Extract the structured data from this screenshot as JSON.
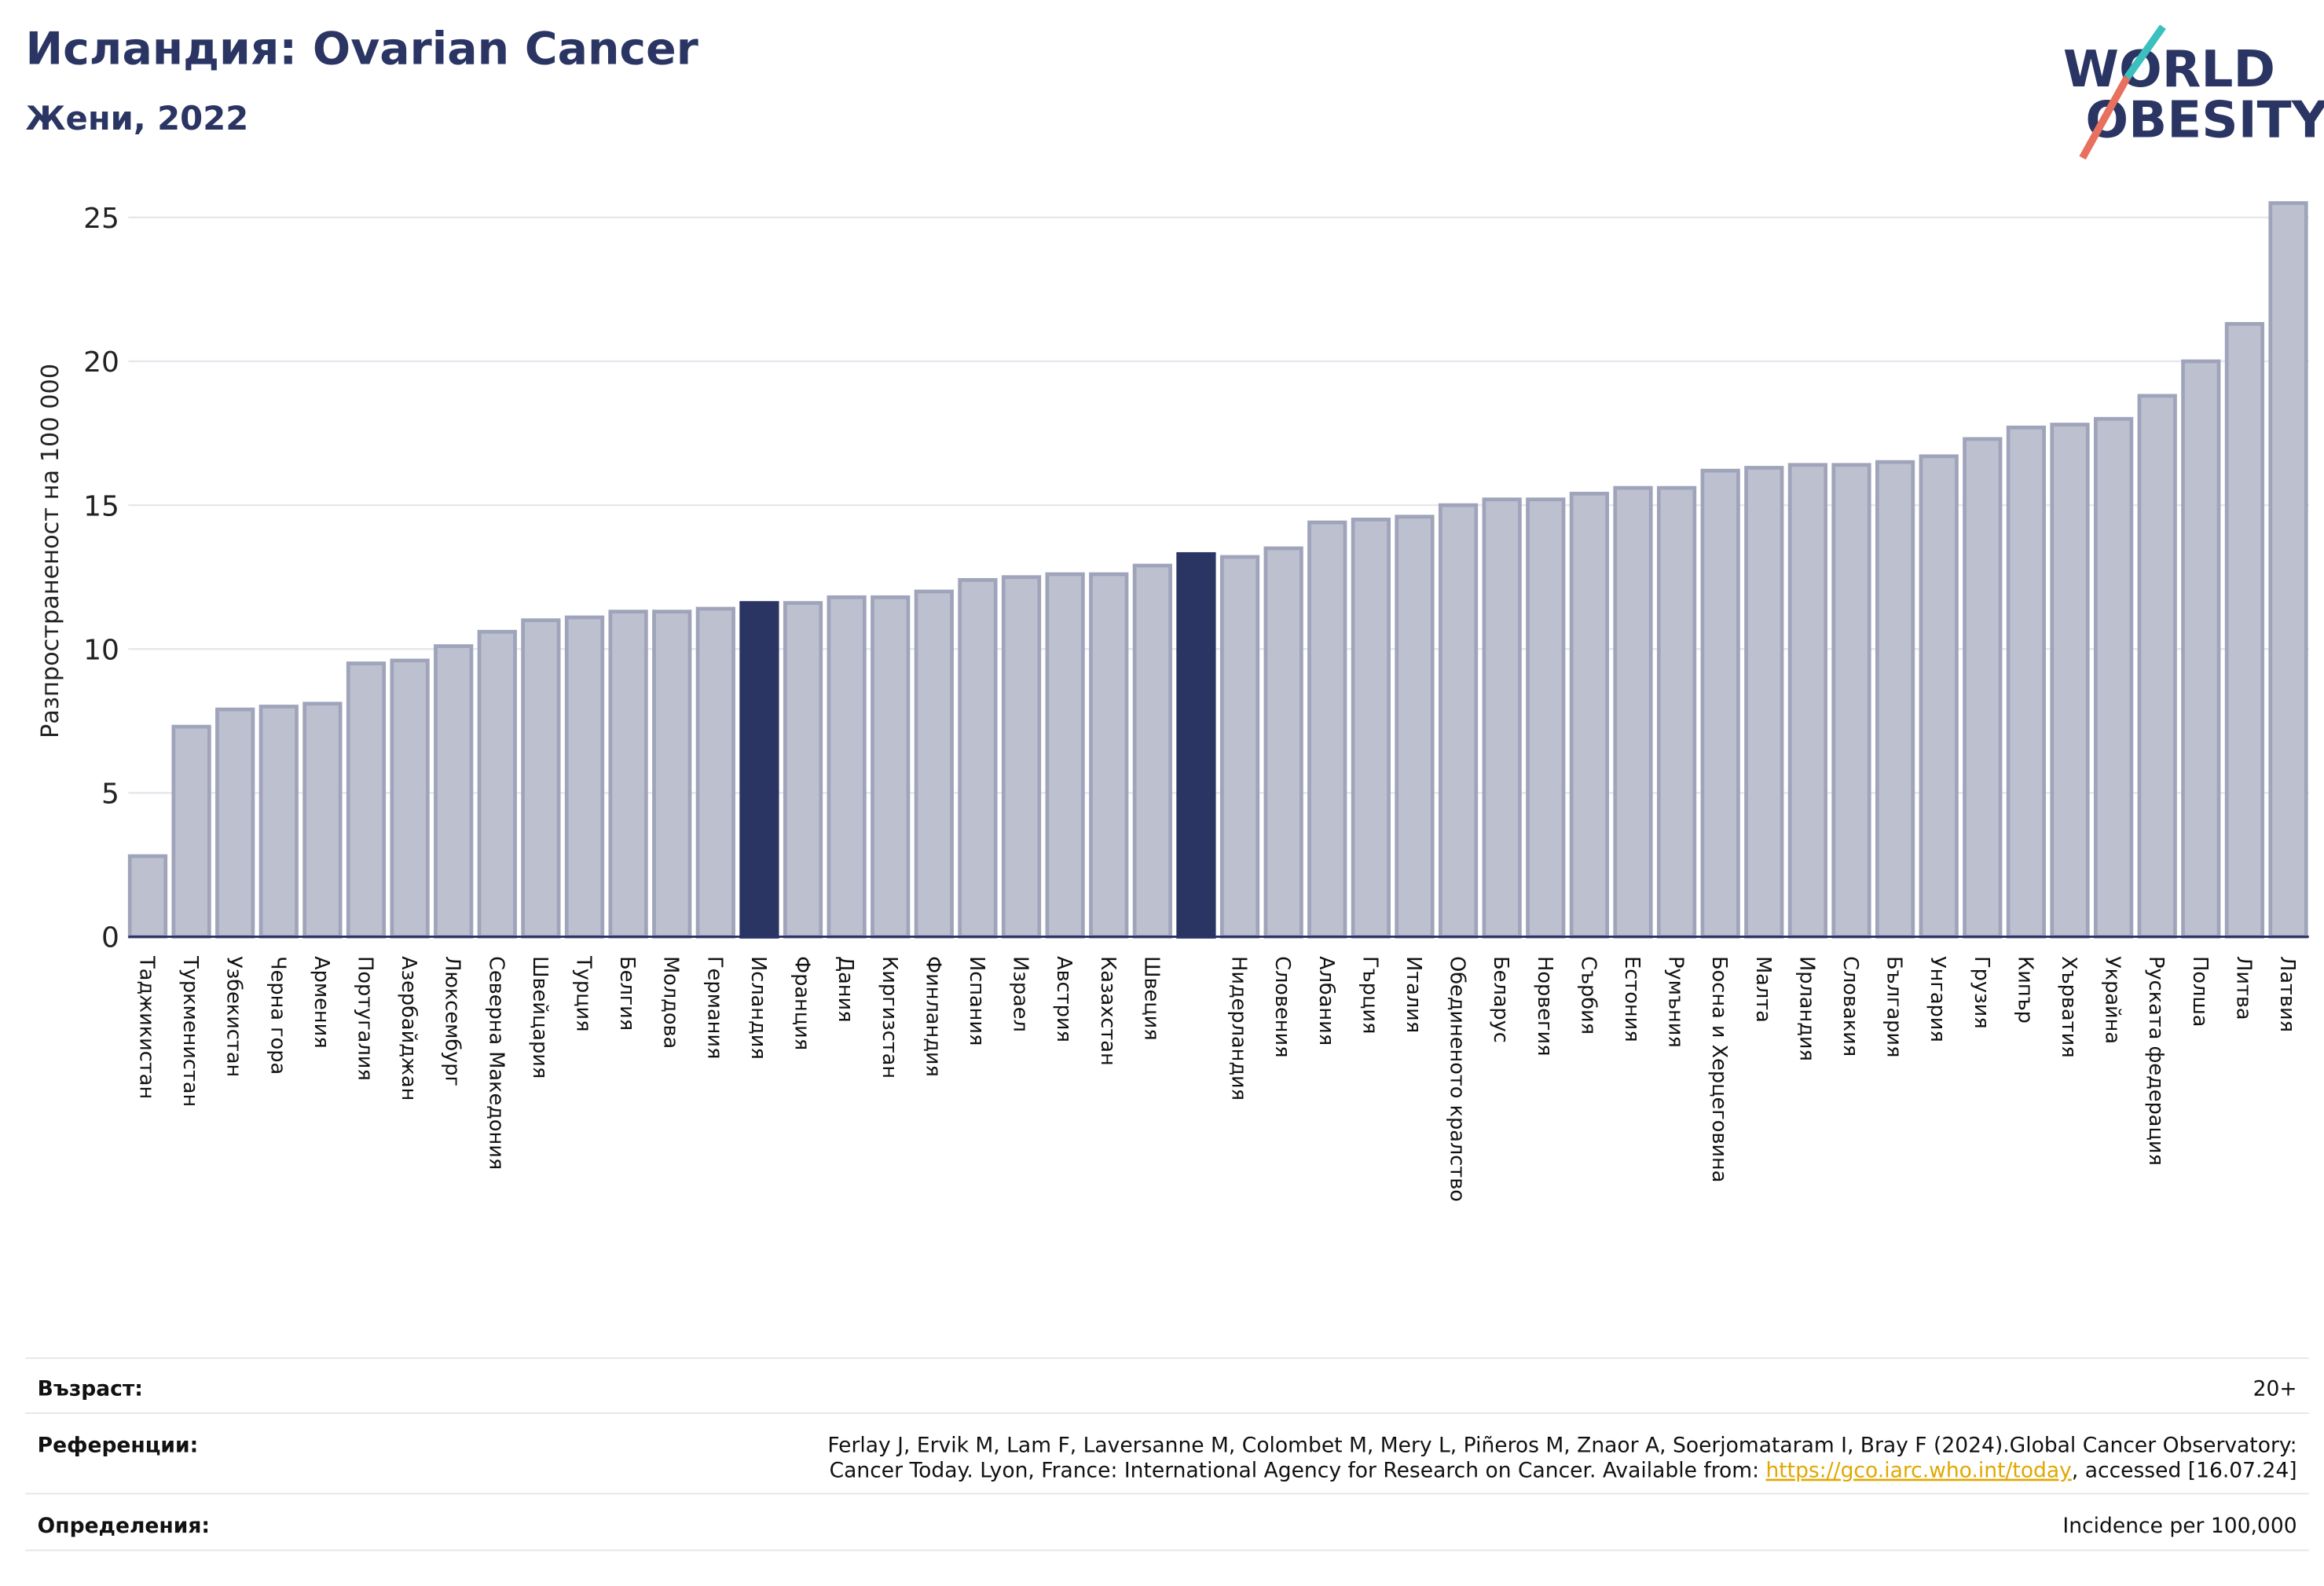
{
  "chart_data": {
    "type": "bar",
    "title": "Исландия: Ovarian Cancer",
    "subtitle": "Жени, 2022",
    "y_label": "Разпространеност  на 100 000",
    "categories": [
      "Таджикистан",
      "Туркменистан",
      "Узбекистан",
      "Черна гора",
      "Армения",
      "Португалия",
      "Азербайджан",
      "Люксембург",
      "Северна Македония",
      "Швейцария",
      "Турция",
      "Белгия",
      "Молдова",
      "Германия",
      "Исландия",
      "Франция",
      "Дания",
      "Киргизстан",
      "Финландия",
      "Испания",
      "Израел",
      "Австрия",
      "Казахстан",
      "Швеция",
      null,
      "Нидерландия",
      "Словения",
      "Албания",
      "Гърция",
      "Италия",
      "Обединеното кралство",
      "Беларус",
      "Норвегия",
      "Сърбия",
      "Естония",
      "Румъния",
      "Босна и Херцеговина",
      "Малта",
      "Ирландия",
      "Словакия",
      "България",
      "Унгария",
      "Грузия",
      "Кипър",
      "Хърватия",
      "Украйна",
      "Руската федерация",
      "Полша",
      "Литва",
      "Латвия"
    ],
    "values": [
      2.8,
      7.3,
      7.9,
      8.0,
      8.1,
      9.5,
      9.6,
      10.1,
      10.6,
      11.0,
      11.1,
      11.3,
      11.3,
      11.4,
      11.6,
      11.6,
      11.8,
      11.8,
      12.0,
      12.4,
      12.5,
      12.6,
      12.6,
      12.9,
      13.3,
      13.2,
      13.5,
      14.4,
      14.5,
      14.6,
      15.0,
      15.2,
      15.2,
      15.4,
      15.6,
      15.6,
      16.2,
      16.3,
      16.4,
      16.4,
      16.5,
      16.7,
      17.3,
      17.7,
      17.8,
      18.0,
      18.8,
      20.0,
      21.3,
      25.5
    ],
    "colors": [
      "#bcc0cf",
      "#bcc0cf",
      "#bcc0cf",
      "#bcc0cf",
      "#bcc0cf",
      "#bcc0cf",
      "#bcc0cf",
      "#bcc0cf",
      "#bcc0cf",
      "#bcc0cf",
      "#bcc0cf",
      "#bcc0cf",
      "#bcc0cf",
      "#bcc0cf",
      "#2a3563",
      "#bcc0cf",
      "#bcc0cf",
      "#bcc0cf",
      "#bcc0cf",
      "#bcc0cf",
      "#bcc0cf",
      "#bcc0cf",
      "#bcc0cf",
      "#bcc0cf",
      "#2a3563",
      "#bcc0cf",
      "#bcc0cf",
      "#bcc0cf",
      "#bcc0cf",
      "#bcc0cf",
      "#bcc0cf",
      "#bcc0cf",
      "#bcc0cf",
      "#bcc0cf",
      "#bcc0cf",
      "#bcc0cf",
      "#bcc0cf",
      "#bcc0cf",
      "#bcc0cf",
      "#bcc0cf",
      "#bcc0cf",
      "#bcc0cf",
      "#bcc0cf",
      "#bcc0cf",
      "#bcc0cf",
      "#bcc0cf",
      "#bcc0cf",
      "#bcc0cf",
      "#bcc0cf",
      "#bcc0cf"
    ],
    "ylim": [
      0,
      26
    ],
    "yticks": [
      0,
      5,
      10,
      15,
      20,
      25
    ],
    "grid": true
  },
  "logo": {
    "line1": "WORLD",
    "line2": "OBESITY"
  },
  "footer": {
    "rows": [
      {
        "label": "Възраст:",
        "value": "20+"
      },
      {
        "label": "Референции:",
        "lines": [
          "Ferlay J, Ervik M, Lam F, Laversanne M, Colombet M, Mery L, Piñeros M, Znaor A, Soerjomataram I, Bray F (2024).Global Cancer Observatory:",
          "Cancer Today. Lyon, France: International Agency for Research on Cancer. Available from: "
        ],
        "link": "https://gco.iarc.who.int/today",
        "after": ", accessed [16.07.24]"
      },
      {
        "label": "Определения:",
        "value": "Incidence per 100,000"
      }
    ]
  }
}
